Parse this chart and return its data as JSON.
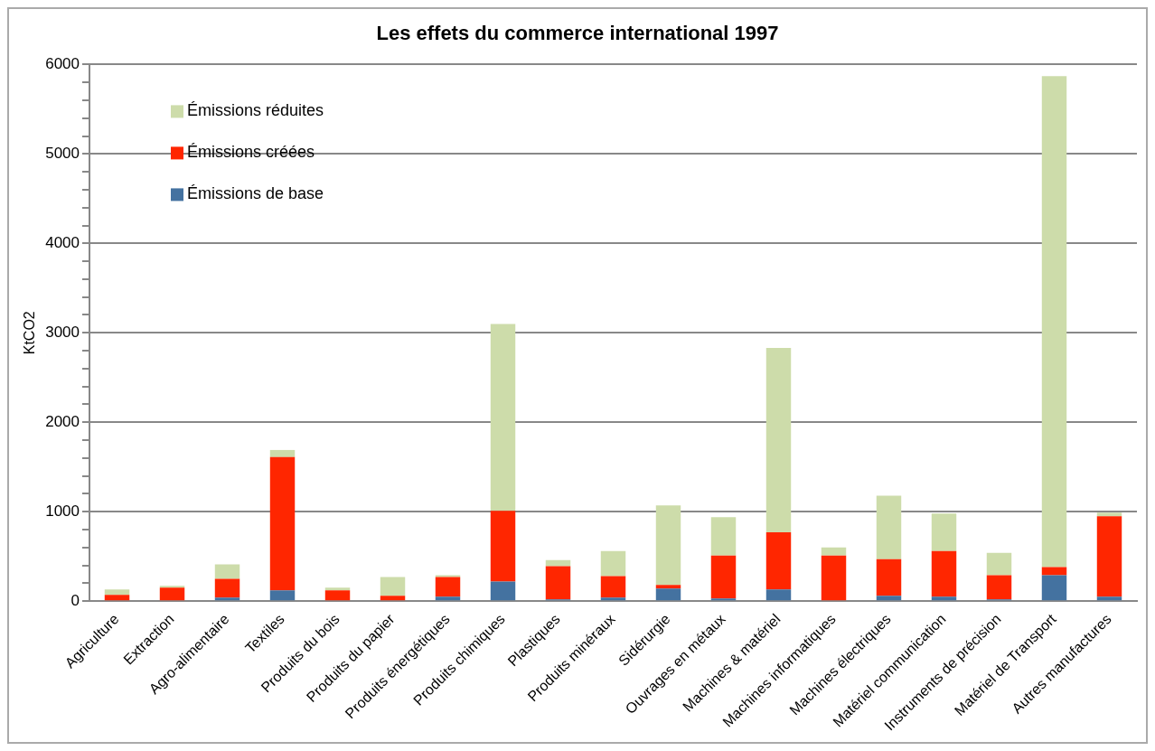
{
  "chart_data": {
    "type": "bar",
    "title": "Les effets du commerce international 1997",
    "ylabel": "KtCO2",
    "stacked": true,
    "grid": "y",
    "legend": "top left",
    "categories": [
      "Agriculture",
      "Extraction",
      "Agro-alimentaire",
      "Textiles",
      "Produits du bois",
      "Produits du papier",
      "Produits énergétiques",
      "Produits chimiques",
      "Plastiques",
      "Produits minéraux",
      "Sidérurgie",
      "Ouvrages en métaux",
      "Machines & matériel",
      "Machines informatiques",
      "Machines électriques",
      "Matériel communication",
      "Instruments de précision",
      "Matériel de Transport",
      "Autres manufactures"
    ],
    "series": [
      {
        "name": "Émissions de base",
        "color": "#4472a0",
        "values": [
          10,
          10,
          40,
          120,
          10,
          10,
          50,
          220,
          20,
          40,
          140,
          30,
          130,
          10,
          60,
          50,
          20,
          290,
          50
        ]
      },
      {
        "name": "Émissions créées",
        "color": "#ff2600",
        "values": [
          60,
          140,
          210,
          1490,
          110,
          50,
          220,
          790,
          370,
          240,
          40,
          480,
          640,
          500,
          410,
          510,
          270,
          90,
          900
        ]
      },
      {
        "name": "Émissions réduites",
        "color": "#cddcaa",
        "values": [
          60,
          20,
          160,
          80,
          30,
          210,
          20,
          2090,
          70,
          280,
          890,
          430,
          2060,
          90,
          710,
          420,
          250,
          5490,
          40
        ]
      }
    ],
    "ylim": [
      0,
      6000
    ],
    "yticks": [
      0,
      {
        "value": 200,
        "label": null
      },
      {
        "value": 400,
        "label": null
      },
      {
        "value": 600,
        "label": null
      },
      {
        "value": 800,
        "label": null
      },
      1000,
      {
        "value": 1200,
        "label": null
      },
      {
        "value": 1400,
        "label": null
      },
      {
        "value": 1600,
        "label": null
      },
      {
        "value": 1800,
        "label": null
      },
      2000,
      {
        "value": 2200,
        "label": null
      },
      {
        "value": 2400,
        "label": null
      },
      {
        "value": 2600,
        "label": null
      },
      {
        "value": 2800,
        "label": null
      },
      3000,
      {
        "value": 3200,
        "label": null
      },
      {
        "value": 3400,
        "label": null
      },
      {
        "value": 3600,
        "label": null
      },
      {
        "value": 3800,
        "label": null
      },
      4000,
      {
        "value": 4200,
        "label": null
      },
      {
        "value": 4400,
        "label": null
      },
      {
        "value": 4600,
        "label": null
      },
      {
        "value": 4800,
        "label": null
      },
      5000,
      {
        "value": 5200,
        "label": null
      },
      {
        "value": 5400,
        "label": null
      },
      {
        "value": 5600,
        "label": null
      },
      {
        "value": 5800,
        "label": null
      },
      6000
    ]
  }
}
